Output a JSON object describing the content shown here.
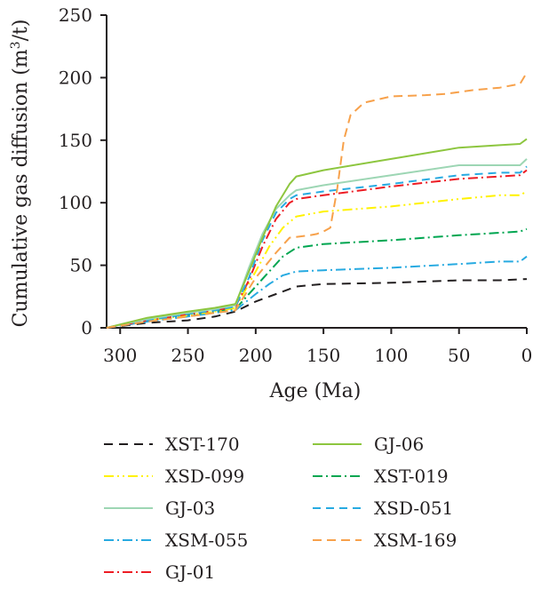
{
  "chart_data": {
    "type": "line",
    "title": "",
    "xlabel": "Age (Ma)",
    "ylabel": "Cumulative gas diffusion (m³/t)",
    "ylabel_parts": {
      "main": "Cumulative gas diffusion (m",
      "sup": "3",
      "tail": "/t)"
    },
    "xlim": [
      310,
      0
    ],
    "x_reversed": true,
    "ylim": [
      0,
      250
    ],
    "xticks": [
      300,
      250,
      200,
      150,
      100,
      50,
      0
    ],
    "yticks": [
      0,
      50,
      100,
      150,
      200,
      250
    ],
    "grid": false,
    "legend_position": "bottom",
    "series": [
      {
        "name": "XST-170",
        "color": "#231f20",
        "dash": "10,7",
        "points": [
          [
            310,
            0
          ],
          [
            280,
            4
          ],
          [
            250,
            6
          ],
          [
            230,
            9
          ],
          [
            215,
            13
          ],
          [
            200,
            21
          ],
          [
            185,
            27
          ],
          [
            170,
            33
          ],
          [
            150,
            35
          ],
          [
            100,
            36
          ],
          [
            50,
            38
          ],
          [
            20,
            38
          ],
          [
            0,
            39
          ]
        ]
      },
      {
        "name": "GJ-06",
        "color": "#8dc63f",
        "dash": "",
        "points": [
          [
            310,
            0
          ],
          [
            280,
            8
          ],
          [
            250,
            13
          ],
          [
            230,
            16
          ],
          [
            215,
            19
          ],
          [
            205,
            45
          ],
          [
            195,
            72
          ],
          [
            185,
            97
          ],
          [
            175,
            115
          ],
          [
            170,
            121
          ],
          [
            150,
            126
          ],
          [
            100,
            135
          ],
          [
            50,
            144
          ],
          [
            20,
            146
          ],
          [
            5,
            147
          ],
          [
            0,
            151
          ]
        ]
      },
      {
        "name": "XSD-099",
        "color": "#fff200",
        "dash": "11,4,2,4,2,4",
        "points": [
          [
            310,
            0
          ],
          [
            280,
            6
          ],
          [
            250,
            10
          ],
          [
            230,
            13
          ],
          [
            215,
            16
          ],
          [
            200,
            45
          ],
          [
            190,
            65
          ],
          [
            180,
            80
          ],
          [
            170,
            89
          ],
          [
            150,
            93
          ],
          [
            100,
            97
          ],
          [
            50,
            103
          ],
          [
            20,
            106
          ],
          [
            5,
            106
          ],
          [
            0,
            109
          ]
        ]
      },
      {
        "name": "XST-019",
        "color": "#00a651",
        "dash": "11,4,2,4",
        "points": [
          [
            310,
            0
          ],
          [
            280,
            6
          ],
          [
            250,
            10
          ],
          [
            230,
            13
          ],
          [
            215,
            15
          ],
          [
            200,
            33
          ],
          [
            190,
            45
          ],
          [
            180,
            57
          ],
          [
            170,
            64
          ],
          [
            150,
            67
          ],
          [
            100,
            70
          ],
          [
            50,
            74
          ],
          [
            20,
            76
          ],
          [
            5,
            77
          ],
          [
            0,
            79
          ]
        ]
      },
      {
        "name": "GJ-03",
        "color": "#9dd6b4",
        "dash": "",
        "points": [
          [
            310,
            0
          ],
          [
            280,
            7
          ],
          [
            250,
            12
          ],
          [
            230,
            15
          ],
          [
            215,
            18
          ],
          [
            205,
            48
          ],
          [
            195,
            75
          ],
          [
            185,
            95
          ],
          [
            175,
            106
          ],
          [
            170,
            110
          ],
          [
            150,
            114
          ],
          [
            100,
            122
          ],
          [
            50,
            130
          ],
          [
            20,
            130
          ],
          [
            5,
            130
          ],
          [
            0,
            135
          ]
        ]
      },
      {
        "name": "XSD-051",
        "color": "#27aae1",
        "dash": "9,6",
        "points": [
          [
            310,
            0
          ],
          [
            280,
            6
          ],
          [
            250,
            11
          ],
          [
            230,
            14
          ],
          [
            215,
            17
          ],
          [
            205,
            40
          ],
          [
            195,
            70
          ],
          [
            185,
            92
          ],
          [
            175,
            103
          ],
          [
            170,
            106
          ],
          [
            150,
            109
          ],
          [
            100,
            115
          ],
          [
            50,
            122
          ],
          [
            20,
            124
          ],
          [
            5,
            124
          ],
          [
            0,
            129
          ]
        ]
      },
      {
        "name": "XSM-055",
        "color": "#27aae1",
        "dash": "11,4,2,4",
        "points": [
          [
            310,
            0
          ],
          [
            280,
            5
          ],
          [
            250,
            9
          ],
          [
            230,
            12
          ],
          [
            215,
            14
          ],
          [
            200,
            27
          ],
          [
            190,
            35
          ],
          [
            180,
            42
          ],
          [
            170,
            45
          ],
          [
            150,
            46
          ],
          [
            100,
            48
          ],
          [
            50,
            51
          ],
          [
            20,
            53
          ],
          [
            5,
            53
          ],
          [
            0,
            57
          ]
        ]
      },
      {
        "name": "XSM-169",
        "color": "#f7a14b",
        "dash": "10,6",
        "points": [
          [
            310,
            0
          ],
          [
            280,
            5
          ],
          [
            250,
            9
          ],
          [
            230,
            12
          ],
          [
            215,
            14
          ],
          [
            200,
            40
          ],
          [
            185,
            60
          ],
          [
            175,
            72
          ],
          [
            160,
            74
          ],
          [
            155,
            75
          ],
          [
            150,
            77
          ],
          [
            145,
            80
          ],
          [
            140,
            110
          ],
          [
            135,
            150
          ],
          [
            130,
            170
          ],
          [
            120,
            180
          ],
          [
            100,
            185
          ],
          [
            75,
            186
          ],
          [
            60,
            187
          ],
          [
            40,
            190
          ],
          [
            20,
            192
          ],
          [
            5,
            195
          ],
          [
            0,
            204
          ]
        ]
      },
      {
        "name": "GJ-01",
        "color": "#ed1c24",
        "dash": "11,4,2,4",
        "points": [
          [
            310,
            0
          ],
          [
            280,
            6
          ],
          [
            250,
            11
          ],
          [
            230,
            14
          ],
          [
            215,
            17
          ],
          [
            205,
            38
          ],
          [
            195,
            65
          ],
          [
            185,
            87
          ],
          [
            175,
            100
          ],
          [
            170,
            103
          ],
          [
            150,
            106
          ],
          [
            100,
            113
          ],
          [
            50,
            119
          ],
          [
            20,
            121
          ],
          [
            5,
            122
          ],
          [
            0,
            126
          ]
        ]
      }
    ]
  }
}
